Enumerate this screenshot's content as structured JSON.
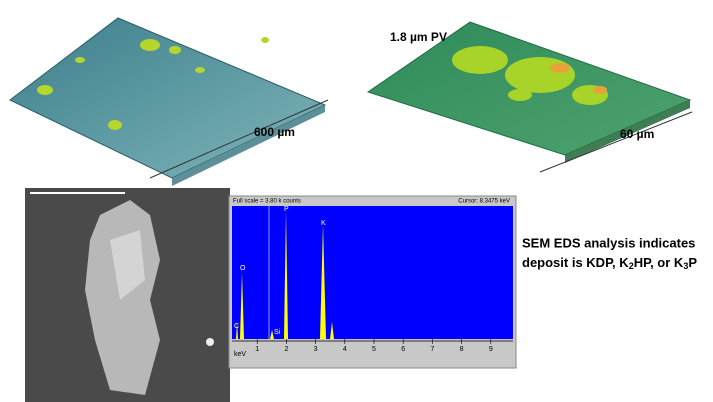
{
  "surface_left": {
    "scale_label": "600 µm"
  },
  "surface_right": {
    "height_label": "1.8 µm PV",
    "scale_label": "60 µm"
  },
  "spectrum": {
    "header_left": "Full scale = 3.80 k counts",
    "header_right": "Cursor: 8.3475 keV",
    "peaks": [
      "C",
      "O",
      "Si",
      "P",
      "K"
    ],
    "xticks": [
      1,
      2,
      3,
      4,
      5,
      6,
      7,
      8,
      9
    ],
    "xlabel": "keV"
  },
  "caption": {
    "line1": "SEM EDS analysis indicates",
    "line2": [
      "deposit is KDP, K",
      "2",
      "HP, or K",
      "3",
      "P"
    ]
  }
}
